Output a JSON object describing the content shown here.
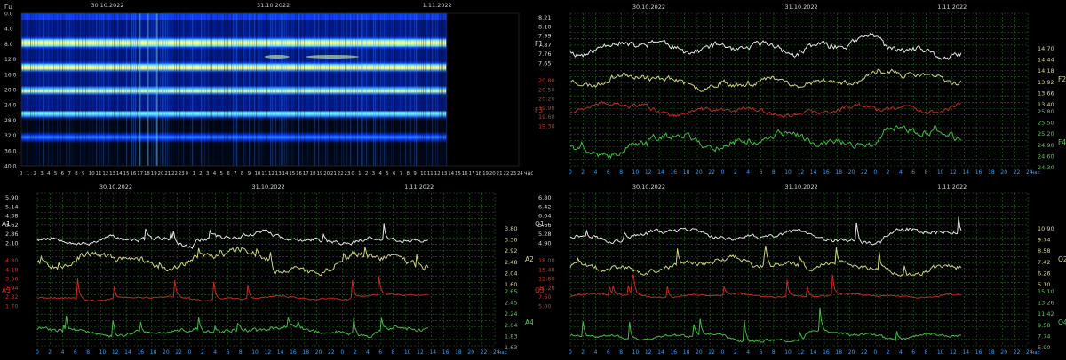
{
  "colors": {
    "white_series": "#e6e6e6",
    "yellow_series": "#cfd67a",
    "red_series": "#c8281e",
    "green_series": "#3fbf3f",
    "grid": "#1f6b1f",
    "left_tick_red": "#d2322a",
    "right_tick_green": "#5fc85f"
  },
  "chart_data": [
    {
      "id": "spectrogram",
      "type": "heatmap",
      "y_unit_label": "Гц",
      "date_labels": [
        "30.10.2022",
        "31.10.2022",
        "1.11.2022"
      ],
      "y_ticks": [
        "0.0",
        "4.0",
        "8.0",
        "12.0",
        "16.0",
        "20.0",
        "24.0",
        "28.0",
        "32.0",
        "36.0",
        "40.0"
      ],
      "ylim": [
        0,
        40
      ],
      "x_ticks": [
        "0",
        "1",
        "2",
        "3",
        "4",
        "5",
        "6",
        "7",
        "8",
        "9",
        "10",
        "11",
        "12",
        "13",
        "14",
        "15",
        "16",
        "17",
        "18",
        "19",
        "20",
        "21",
        "22",
        "23",
        "0",
        "1",
        "2",
        "3",
        "4",
        "5",
        "6",
        "7",
        "8",
        "9",
        "10",
        "11",
        "12",
        "13",
        "14",
        "15",
        "16",
        "17",
        "18",
        "19",
        "20",
        "21",
        "22",
        "23",
        "0",
        "1",
        "2",
        "3",
        "4",
        "5",
        "6",
        "7",
        "8",
        "9",
        "10",
        "11",
        "12",
        "13",
        "14",
        "15",
        "16",
        "17",
        "18",
        "19",
        "20",
        "21",
        "22",
        "23",
        "24"
      ],
      "x_unit": "час",
      "bright_bands_hz": [
        7.8,
        14.1,
        20.3,
        26.4,
        32.5
      ],
      "data_end_hour": 61.5,
      "colormap": [
        "#000814",
        "#001a8c",
        "#0a3cff",
        "#2a8cff",
        "#6cf2ff",
        "#ffff80"
      ]
    },
    {
      "id": "frequencies",
      "type": "line",
      "date_labels": [
        "30.10.2022",
        "31.10.2022",
        "1.11.2022"
      ],
      "x_ticks": [
        "0",
        "2",
        "4",
        "6",
        "8",
        "10",
        "12",
        "14",
        "16",
        "18",
        "20",
        "22",
        "0",
        "2",
        "4",
        "6",
        "8",
        "10",
        "12",
        "14",
        "16",
        "18",
        "20",
        "22",
        "0",
        "2",
        "4",
        "6",
        "8",
        "10",
        "12",
        "14",
        "16",
        "18",
        "20",
        "22",
        "24"
      ],
      "x_unit": "час",
      "data_end_hour": 61.5,
      "left_labels": [
        "F1",
        "F3"
      ],
      "right_labels": [
        "F2",
        "F4"
      ],
      "left_ticks_white": [
        "8.21",
        "8.10",
        "7.99",
        "7.87",
        "7.76",
        "7.65"
      ],
      "left_ticks_red": [
        "20.80",
        "20.50",
        "20.20",
        "19.90",
        "19.60",
        "19.30"
      ],
      "right_ticks_yellow": [
        "14.70",
        "14.44",
        "14.18",
        "13.92",
        "13.66",
        "13.40"
      ],
      "right_ticks_green": [
        "25.80",
        "25.50",
        "25.20",
        "24.90",
        "24.60",
        "24.30"
      ],
      "series": [
        {
          "name": "F1",
          "band": 0,
          "mean": 0.5,
          "amp": 0.18,
          "spike": 0.1,
          "seed": 11,
          "trend": [
            0.0,
            0.05,
            -0.05,
            0.1,
            -0.05
          ]
        },
        {
          "name": "F2",
          "band": 1,
          "mean": 0.4,
          "amp": 0.16,
          "spike": 0.06,
          "seed": 23,
          "trend": [
            0.05,
            0.0,
            -0.05,
            0.05,
            0.1
          ]
        },
        {
          "name": "F3",
          "band": 2,
          "mean": 0.4,
          "amp": 0.12,
          "spike": 0.05,
          "seed": 37,
          "trend": [
            0.05,
            0.0,
            -0.05,
            0.0,
            0.05
          ]
        },
        {
          "name": "F4",
          "band": 3,
          "mean": 0.45,
          "amp": 0.2,
          "spike": 0.12,
          "seed": 41,
          "trend": [
            -0.1,
            0.05,
            0.05,
            0.05,
            0.15
          ]
        }
      ]
    },
    {
      "id": "amplitudes",
      "type": "line",
      "date_labels": [
        "30.10.2022",
        "31.10.2022",
        "1.11.2022"
      ],
      "x_ticks": [
        "0",
        "2",
        "4",
        "6",
        "8",
        "10",
        "12",
        "14",
        "16",
        "18",
        "20",
        "22",
        "0",
        "2",
        "4",
        "6",
        "8",
        "10",
        "12",
        "14",
        "16",
        "18",
        "20",
        "22",
        "0",
        "2",
        "4",
        "6",
        "8",
        "10",
        "12",
        "14",
        "16",
        "18",
        "20",
        "22",
        "24"
      ],
      "x_unit": "час",
      "data_end_hour": 61.5,
      "left_labels": [
        "A1",
        "A3"
      ],
      "right_labels": [
        "A2",
        "A4"
      ],
      "left_ticks_white": [
        "5.90",
        "5.14",
        "4.38",
        "3.62",
        "2.86",
        "2.10"
      ],
      "left_ticks_red": [
        "4.80",
        "4.18",
        "3.56",
        "2.94",
        "2.32",
        "1.70"
      ],
      "right_ticks_yellow": [
        "3.80",
        "3.36",
        "2.92",
        "2.48",
        "2.04",
        "1.60"
      ],
      "right_ticks_green": [
        "2.65",
        "2.45",
        "2.24",
        "2.04",
        "1.83",
        "1.63"
      ],
      "series": [
        {
          "name": "A1",
          "band": 0,
          "mean": 0.3,
          "amp": 0.12,
          "spike": 0.35,
          "seed": 53,
          "trend": [
            0.0,
            -0.05,
            0.05,
            0.0,
            -0.05
          ]
        },
        {
          "name": "A2",
          "band": 1,
          "mean": 0.4,
          "amp": 0.18,
          "spike": 0.25,
          "seed": 67,
          "trend": [
            0.05,
            0.0,
            0.1,
            -0.1,
            0.05
          ]
        },
        {
          "name": "A3",
          "band": 2,
          "mean": 0.25,
          "amp": 0.05,
          "spike": 0.55,
          "seed": 71,
          "trend": [
            0.0,
            0.0,
            0.0,
            0.0,
            0.05
          ]
        },
        {
          "name": "A4",
          "band": 3,
          "mean": 0.3,
          "amp": 0.12,
          "spike": 0.4,
          "seed": 83,
          "trend": [
            0.0,
            -0.05,
            0.05,
            0.0,
            0.0
          ]
        }
      ]
    },
    {
      "id": "quality",
      "type": "line",
      "date_labels": [
        "30.10.2022",
        "31.10.2022",
        "1.11.2022"
      ],
      "x_ticks": [
        "0",
        "2",
        "4",
        "6",
        "8",
        "10",
        "12",
        "14",
        "16",
        "18",
        "20",
        "22",
        "0",
        "2",
        "4",
        "6",
        "8",
        "10",
        "12",
        "14",
        "16",
        "18",
        "20",
        "22",
        "0",
        "2",
        "4",
        "6",
        "8",
        "10",
        "12",
        "14",
        "16",
        "18",
        "20",
        "22",
        "24"
      ],
      "x_unit": "час",
      "data_end_hour": 61.5,
      "left_labels": [
        "Q1",
        "Q3"
      ],
      "right_labels": [
        "Q2",
        "Q4"
      ],
      "left_ticks_white": [
        "6.80",
        "6.42",
        "6.04",
        "5.66",
        "5.28",
        "4.90"
      ],
      "left_ticks_red": [
        "18.00",
        "15.40",
        "12.80",
        "10.20",
        "7.60",
        "5.00"
      ],
      "right_ticks_yellow": [
        "10.90",
        "9.74",
        "8.58",
        "7.42",
        "6.26",
        "5.10"
      ],
      "right_ticks_green": [
        "15.10",
        "13.26",
        "11.42",
        "9.58",
        "7.74",
        "5.90"
      ],
      "series": [
        {
          "name": "Q1",
          "band": 0,
          "mean": 0.35,
          "amp": 0.12,
          "spike": 0.45,
          "seed": 97,
          "trend": [
            0.0,
            0.05,
            0.0,
            -0.05,
            0.05
          ]
        },
        {
          "name": "Q2",
          "band": 1,
          "mean": 0.3,
          "amp": 0.15,
          "spike": 0.4,
          "seed": 101,
          "trend": [
            -0.05,
            0.05,
            0.1,
            0.0,
            -0.05
          ]
        },
        {
          "name": "Q3",
          "band": 2,
          "mean": 0.3,
          "amp": 0.05,
          "spike": 0.5,
          "seed": 113,
          "trend": [
            0.0,
            0.0,
            0.0,
            0.0,
            0.0
          ]
        },
        {
          "name": "Q4",
          "band": 3,
          "mean": 0.2,
          "amp": 0.08,
          "spike": 0.55,
          "seed": 127,
          "trend": [
            0.0,
            0.0,
            -0.05,
            0.05,
            0.0
          ]
        }
      ]
    }
  ]
}
